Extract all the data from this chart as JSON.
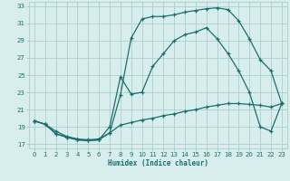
{
  "xlabel": "Humidex (Indice chaleur)",
  "bg_color": "#d8eeed",
  "grid_color": "#aacfcf",
  "line_color": "#1a6e6e",
  "xlim": [
    -0.5,
    23.5
  ],
  "ylim": [
    16.5,
    33.5
  ],
  "xticks": [
    0,
    1,
    2,
    3,
    4,
    5,
    6,
    7,
    8,
    9,
    10,
    11,
    12,
    13,
    14,
    15,
    16,
    17,
    18,
    19,
    20,
    21,
    22,
    23
  ],
  "yticks": [
    17,
    19,
    21,
    23,
    25,
    27,
    29,
    31,
    33
  ],
  "line1_x": [
    0,
    1,
    2,
    3,
    4,
    5,
    6,
    7,
    8,
    9,
    10,
    11,
    12,
    13,
    14,
    15,
    16,
    17,
    18,
    19,
    20,
    21,
    22,
    23
  ],
  "line1_y": [
    19.7,
    19.3,
    18.2,
    17.8,
    17.5,
    17.4,
    17.5,
    18.3,
    22.7,
    29.3,
    31.5,
    31.8,
    31.8,
    32.0,
    32.3,
    32.5,
    32.7,
    32.8,
    32.6,
    31.3,
    29.2,
    26.8,
    25.5,
    21.7
  ],
  "line2_x": [
    0,
    1,
    2,
    3,
    4,
    5,
    6,
    7,
    8,
    9,
    10,
    11,
    12,
    13,
    14,
    15,
    16,
    17,
    18,
    19,
    20,
    21,
    22,
    23
  ],
  "line2_y": [
    19.7,
    19.3,
    18.2,
    17.8,
    17.5,
    17.4,
    17.5,
    19.0,
    24.8,
    22.8,
    23.0,
    26.0,
    27.5,
    29.0,
    29.7,
    30.0,
    30.5,
    29.2,
    27.5,
    25.5,
    23.0,
    19.0,
    18.5,
    21.7
  ],
  "line3_x": [
    0,
    1,
    2,
    3,
    4,
    5,
    6,
    7,
    8,
    9,
    10,
    11,
    12,
    13,
    14,
    15,
    16,
    17,
    18,
    19,
    20,
    21,
    22,
    23
  ],
  "line3_y": [
    19.7,
    19.3,
    18.5,
    17.9,
    17.6,
    17.5,
    17.6,
    18.3,
    19.2,
    19.5,
    19.8,
    20.0,
    20.3,
    20.5,
    20.8,
    21.0,
    21.3,
    21.5,
    21.7,
    21.7,
    21.6,
    21.5,
    21.3,
    21.7
  ]
}
